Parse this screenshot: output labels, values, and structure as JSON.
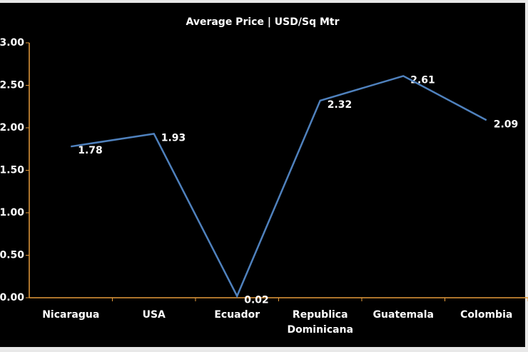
{
  "chart_data": {
    "type": "line",
    "title": "Average Price | USD/Sq Mtr",
    "categories": [
      "Nicaragua",
      "USA",
      "Ecuador",
      "Republica Dominicana",
      "Guatemala",
      "Colombia"
    ],
    "series": [
      {
        "name": "Average Price",
        "color": "#4f81bd",
        "values": [
          1.78,
          1.93,
          0.02,
          2.32,
          2.61,
          2.09
        ]
      }
    ],
    "ylim": [
      0,
      3
    ],
    "yticks": [
      {
        "value": 0,
        "label": "0.00"
      },
      {
        "value": 0.5,
        "label": "0.50"
      },
      {
        "value": 1,
        "label": "1.00"
      },
      {
        "value": 1.5,
        "label": "1.50"
      },
      {
        "value": 2,
        "label": "2.00"
      },
      {
        "value": 2.5,
        "label": "2.50"
      },
      {
        "value": 3,
        "label": "3.00"
      }
    ],
    "grid": false
  }
}
